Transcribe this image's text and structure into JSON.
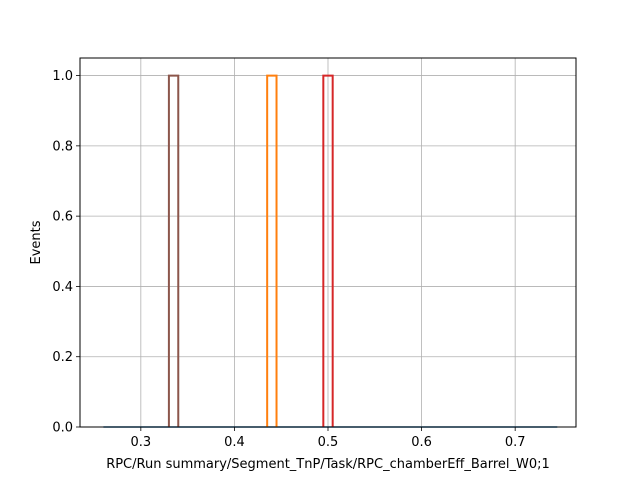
{
  "chart_data": {
    "type": "step",
    "title": "",
    "xlabel": "RPC/Run summary/Segment_TnP/Task/RPC_chamberEff_Barrel_W0;1",
    "ylabel": "Events",
    "xlim": [
      0.235,
      0.765
    ],
    "ylim": [
      0,
      1.05
    ],
    "grid": true,
    "xticks": [
      0.3,
      0.4,
      0.5,
      0.6,
      0.7
    ],
    "xtick_labels": [
      "0.3",
      "0.4",
      "0.5",
      "0.6",
      "0.7"
    ],
    "yticks": [
      0.0,
      0.2,
      0.4,
      0.6,
      0.8,
      1.0
    ],
    "ytick_labels": [
      "0.0",
      "0.2",
      "0.4",
      "0.6",
      "0.8",
      "1.0"
    ],
    "baseline_range": [
      0.26,
      0.745
    ],
    "series": [
      {
        "color": "#8c564b",
        "bin": [
          0.33,
          0.34
        ],
        "value": 1.0
      },
      {
        "color": "#ff7f0e",
        "bin": [
          0.435,
          0.445
        ],
        "value": 1.0
      },
      {
        "color": "#d62728",
        "bin": [
          0.495,
          0.505
        ],
        "value": 1.0
      }
    ],
    "baseline_color": "#1f77b4"
  }
}
